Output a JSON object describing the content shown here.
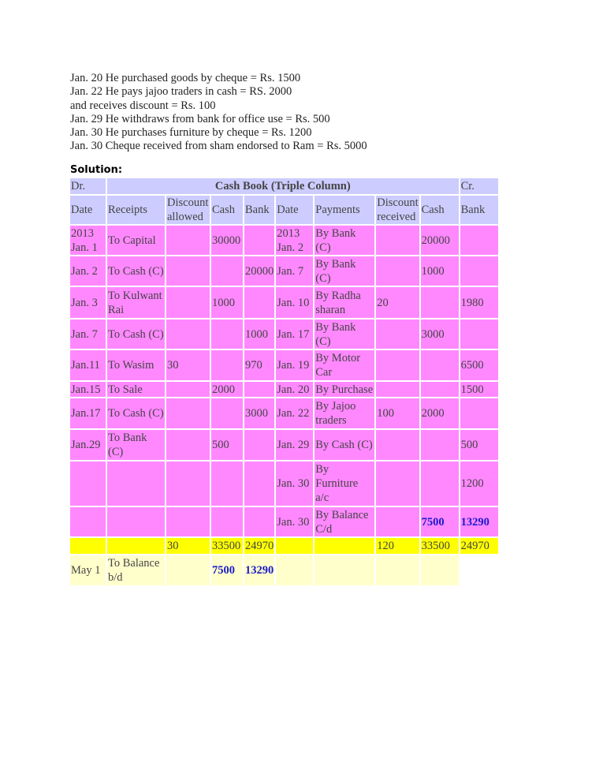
{
  "intro_lines": [
    "Jan. 20 He purchased goods by cheque = Rs. 1500",
    "Jan. 22 He pays jajoo traders in cash = RS. 2000",
    "and receives discount = Rs. 100",
    "Jan. 29 He withdraws from bank for office use = Rs. 500",
    "Jan. 30 He purchases furniture by cheque = Rs. 1200",
    "Jan. 30 Cheque received from sham endorsed to Ram = Rs. 5000"
  ],
  "solution_label": "Solution:",
  "table": {
    "dr": "Dr.",
    "title": "Cash Book (Triple Column)",
    "cr": "Cr.",
    "headers": [
      "Date",
      "Receipts",
      "Discount allowed",
      "Cash",
      "Bank",
      "Date",
      "Payments",
      "Discount received",
      "Cash",
      "Bank"
    ],
    "rows": [
      [
        "2013 Jan. 1",
        "To Capital",
        "",
        "30000",
        "",
        "2013 Jan. 2",
        "By Bank (C)",
        "",
        "20000",
        ""
      ],
      [
        "Jan. 2",
        "To Cash (C)",
        "",
        "",
        "20000",
        "Jan. 7",
        "By Bank (C)",
        "",
        "1000",
        ""
      ],
      [
        "Jan. 3",
        "To Kulwant Rai",
        "",
        "1000",
        "",
        "Jan. 10",
        "By Radha sharan",
        "20",
        "",
        "1980"
      ],
      [
        "Jan. 7",
        "To Cash (C)",
        "",
        "",
        "1000",
        "Jan.  17",
        " By Bank (C)",
        "",
        "3000",
        ""
      ],
      [
        "Jan.11",
        "To Wasim",
        "30",
        "",
        "970",
        "Jan. 19",
        "By Motor Car",
        "",
        "",
        "6500"
      ],
      [
        "Jan.15",
        " To Sale",
        "",
        "2000",
        "",
        "Jan. 20",
        "By Purchase",
        "",
        "",
        "1500"
      ],
      [
        "Jan.17",
        "To Cash (C)",
        "",
        "",
        "3000",
        "Jan. 22",
        "By Jajoo traders",
        "100",
        "2000",
        ""
      ],
      [
        "Jan.29",
        "To Bank (C)",
        "",
        "500",
        "",
        "Jan. 29",
        "By Cash (C)",
        "",
        "",
        "500"
      ],
      [
        "",
        "",
        "",
        "",
        "",
        "Jan. 30",
        "By Furniture a/c",
        "",
        "",
        "1200"
      ],
      [
        "",
        "",
        "",
        "",
        "",
        "Jan. 30",
        "By Balance C/d",
        "",
        "7500",
        "13290"
      ]
    ],
    "totals": [
      "",
      "",
      "30",
      "33500",
      "24970",
      "",
      "",
      "120",
      "33500",
      "24970"
    ],
    "balance_row": [
      "May 1",
      "To Balance b/d",
      "",
      "7500",
      "13290",
      "",
      "",
      "",
      ""
    ],
    "colors": {
      "header": "#ccccff",
      "row": "#ff88ff",
      "totals": "#ffff00",
      "balance": "#ffffcc",
      "highlight": "#1a1acc"
    }
  }
}
